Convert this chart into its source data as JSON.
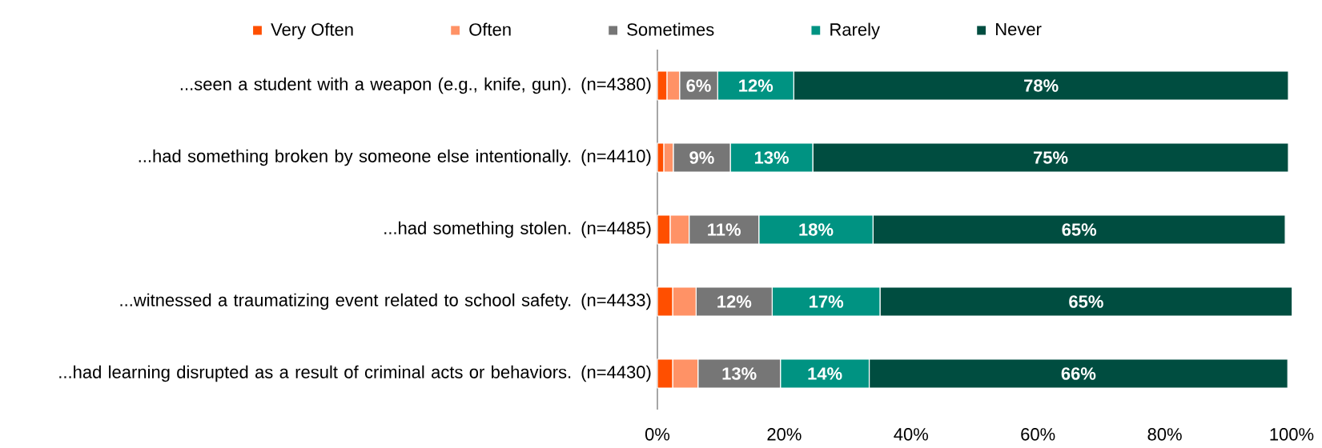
{
  "chart_data": {
    "type": "bar",
    "orientation": "horizontal",
    "stacked": true,
    "legend": "top",
    "categories": [
      "...seen a student with a weapon (e.g., knife, gun). (n=4380)",
      "...had something broken by someone else intentionally. (n=4410)",
      "...had something stolen. (n=4485)",
      "...witnessed a traumatizing event related to school safety. (n=4433)",
      "...had learning disrupted as a result of criminal acts or behaviors. (n=4430)"
    ],
    "series": [
      {
        "name": "Very Often",
        "color": "#ff4f00",
        "values": [
          1.5,
          1,
          2,
          2.4,
          2.4
        ]
      },
      {
        "name": "Often",
        "color": "#ff9266",
        "values": [
          2,
          1.5,
          3,
          3.7,
          4
        ]
      },
      {
        "name": "Sometimes",
        "color": "#767676",
        "values": [
          6,
          9,
          11,
          12,
          13
        ],
        "value_labels": [
          "6%",
          "9%",
          "11%",
          "12%",
          "13%"
        ]
      },
      {
        "name": "Rarely",
        "color": "#009382",
        "values": [
          12,
          13,
          18,
          17,
          14
        ],
        "value_labels": [
          "12%",
          "13%",
          "18%",
          "17%",
          "14%"
        ]
      },
      {
        "name": "Never",
        "color": "#004d40",
        "values": [
          78,
          75,
          65,
          65,
          66
        ],
        "value_labels": [
          "78%",
          "75%",
          "65%",
          "65%",
          "66%"
        ]
      }
    ],
    "xlim": [
      0,
      100
    ],
    "xticks": [
      {
        "value": 0,
        "label": "0%"
      },
      {
        "value": 20,
        "label": "20%"
      },
      {
        "value": 40,
        "label": "40%"
      },
      {
        "value": 60,
        "label": "60%"
      },
      {
        "value": 80,
        "label": "80%"
      },
      {
        "value": 100,
        "label": "100%"
      }
    ]
  }
}
